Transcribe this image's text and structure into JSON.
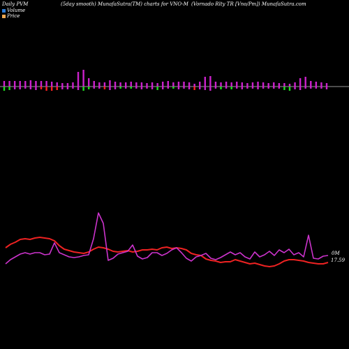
{
  "header": {
    "left": "Daily PVM",
    "center": "(5day smooth) MunafaSutra(TM) charts for VNO-M",
    "right": "(Vornado Rlty TR [Vno/Pm]) MunafaSutra.com"
  },
  "legend": {
    "volume_label": "Volume",
    "price_label": "Price"
  },
  "colors": {
    "background": "#000000",
    "volume_swatch": "#2b7bd6",
    "price_swatch": "#f0a850",
    "up_bar": "#cc22cc",
    "down_bar": "#ff2222",
    "green_bar": "#22dd22",
    "price_line": "#ee2222",
    "volume_line": "#cc33cc",
    "baseline": "#cccccc"
  },
  "side_labels": {
    "volume_tag": "0M",
    "price_tag": "17.59"
  },
  "chart_data": {
    "type": "line",
    "panels": [
      {
        "name": "bars",
        "bars": [
          {
            "up": 8,
            "down": 6,
            "down_color": "green"
          },
          {
            "up": 8,
            "down": 5,
            "down_color": "green"
          },
          {
            "up": 8,
            "down": 4,
            "down_color": "purple"
          },
          {
            "up": 8,
            "down": 4,
            "down_color": "purple"
          },
          {
            "up": 8,
            "down": 3,
            "down_color": "purple"
          },
          {
            "up": 9,
            "down": 4,
            "down_color": "purple"
          },
          {
            "up": 8,
            "down": 5,
            "down_color": "purple"
          },
          {
            "up": 8,
            "down": 4,
            "down_color": "red"
          },
          {
            "up": 8,
            "down": 6,
            "down_color": "red"
          },
          {
            "up": 7,
            "down": 6,
            "down_color": "red"
          },
          {
            "up": 6,
            "down": 5,
            "down_color": "red"
          },
          {
            "up": 5,
            "down": 4,
            "down_color": "purple"
          },
          {
            "up": 5,
            "down": 4,
            "down_color": "purple"
          },
          {
            "up": 6,
            "down": 3,
            "down_color": "purple"
          },
          {
            "up": 21,
            "down": 5,
            "down_color": "purple"
          },
          {
            "up": 24,
            "down": 6,
            "down_color": "green"
          },
          {
            "up": 12,
            "down": 4,
            "down_color": "green"
          },
          {
            "up": 8,
            "down": 3,
            "down_color": "purple"
          },
          {
            "up": 6,
            "down": 3,
            "down_color": "purple"
          },
          {
            "up": 6,
            "down": 4,
            "down_color": "red"
          },
          {
            "up": 9,
            "down": 5,
            "down_color": "purple"
          },
          {
            "up": 7,
            "down": 4,
            "down_color": "purple"
          },
          {
            "up": 6,
            "down": 3,
            "down_color": "green"
          },
          {
            "up": 6,
            "down": 3,
            "down_color": "purple"
          },
          {
            "up": 7,
            "down": 3,
            "down_color": "green"
          },
          {
            "up": 6,
            "down": 3,
            "down_color": "purple"
          },
          {
            "up": 6,
            "down": 4,
            "down_color": "purple"
          },
          {
            "up": 5,
            "down": 3,
            "down_color": "purple"
          },
          {
            "up": 6,
            "down": 4,
            "down_color": "purple"
          },
          {
            "up": 5,
            "down": 5,
            "down_color": "green"
          },
          {
            "up": 7,
            "down": 4,
            "down_color": "purple"
          },
          {
            "up": 8,
            "down": 3,
            "down_color": "purple"
          },
          {
            "up": 6,
            "down": 3,
            "down_color": "green"
          },
          {
            "up": 7,
            "down": 4,
            "down_color": "purple"
          },
          {
            "up": 7,
            "down": 3,
            "down_color": "purple"
          },
          {
            "up": 6,
            "down": 4,
            "down_color": "purple"
          },
          {
            "up": 4,
            "down": 5,
            "down_color": "red"
          },
          {
            "up": 7,
            "down": 4,
            "down_color": "purple"
          },
          {
            "up": 14,
            "down": 5,
            "down_color": "purple"
          },
          {
            "up": 15,
            "down": 6,
            "down_color": "purple"
          },
          {
            "up": 7,
            "down": 3,
            "down_color": "purple"
          },
          {
            "up": 6,
            "down": 4,
            "down_color": "green"
          },
          {
            "up": 7,
            "down": 3,
            "down_color": "purple"
          },
          {
            "up": 6,
            "down": 4,
            "down_color": "green"
          },
          {
            "up": 7,
            "down": 3,
            "down_color": "purple"
          },
          {
            "up": 6,
            "down": 4,
            "down_color": "purple"
          },
          {
            "up": 5,
            "down": 3,
            "down_color": "purple"
          },
          {
            "up": 6,
            "down": 3,
            "down_color": "purple"
          },
          {
            "up": 7,
            "down": 4,
            "down_color": "purple"
          },
          {
            "up": 6,
            "down": 3,
            "down_color": "purple"
          },
          {
            "up": 5,
            "down": 3,
            "down_color": "purple"
          },
          {
            "up": 6,
            "down": 3,
            "down_color": "purple"
          },
          {
            "up": 5,
            "down": 3,
            "down_color": "purple"
          },
          {
            "up": 5,
            "down": 5,
            "down_color": "green"
          },
          {
            "up": 4,
            "down": 6,
            "down_color": "green"
          },
          {
            "up": 6,
            "down": 4,
            "down_color": "purple"
          },
          {
            "up": 12,
            "down": 5,
            "down_color": "purple"
          },
          {
            "up": 14,
            "down": 3,
            "down_color": "purple"
          },
          {
            "up": 8,
            "down": 3,
            "down_color": "purple"
          },
          {
            "up": 7,
            "down": 3,
            "down_color": "purple"
          },
          {
            "up": 6,
            "down": 3,
            "down_color": "purple"
          },
          {
            "up": 5,
            "down": 4,
            "down_color": "purple"
          }
        ]
      },
      {
        "name": "lines",
        "series": [
          {
            "key": "price",
            "values": [
              355,
              350,
              347,
              343,
              342,
              343,
              341,
              340,
              341,
              342,
              345,
              352,
              357,
              359,
              361,
              362,
              363,
              361,
              357,
              354,
              355,
              357,
              360,
              361,
              360,
              359,
              361,
              360,
              358,
              358,
              357,
              358,
              355,
              354,
              356,
              355,
              356,
              358,
              363,
              365,
              366,
              371,
              373,
              374,
              376,
              375,
              375,
              372,
              374,
              376,
              378,
              377,
              379,
              381,
              382,
              381,
              378,
              374,
              372,
              372,
              373,
              374,
              376,
              377,
              378,
              378,
              376
            ]
          },
          {
            "key": "volume",
            "values": [
              378,
              372,
              368,
              364,
              362,
              364,
              362,
              362,
              365,
              364,
              348,
              362,
              365,
              368,
              369,
              368,
              366,
              365,
              342,
              305,
              320,
              373,
              370,
              364,
              362,
              360,
              351,
              367,
              371,
              369,
              362,
              362,
              366,
              363,
              358,
              355,
              362,
              370,
              374,
              368,
              366,
              363,
              370,
              372,
              369,
              365,
              361,
              365,
              362,
              368,
              371,
              361,
              368,
              365,
              360,
              366,
              358,
              362,
              357,
              365,
              362,
              368,
              337,
              370,
              371,
              367,
              366
            ]
          }
        ]
      }
    ]
  }
}
